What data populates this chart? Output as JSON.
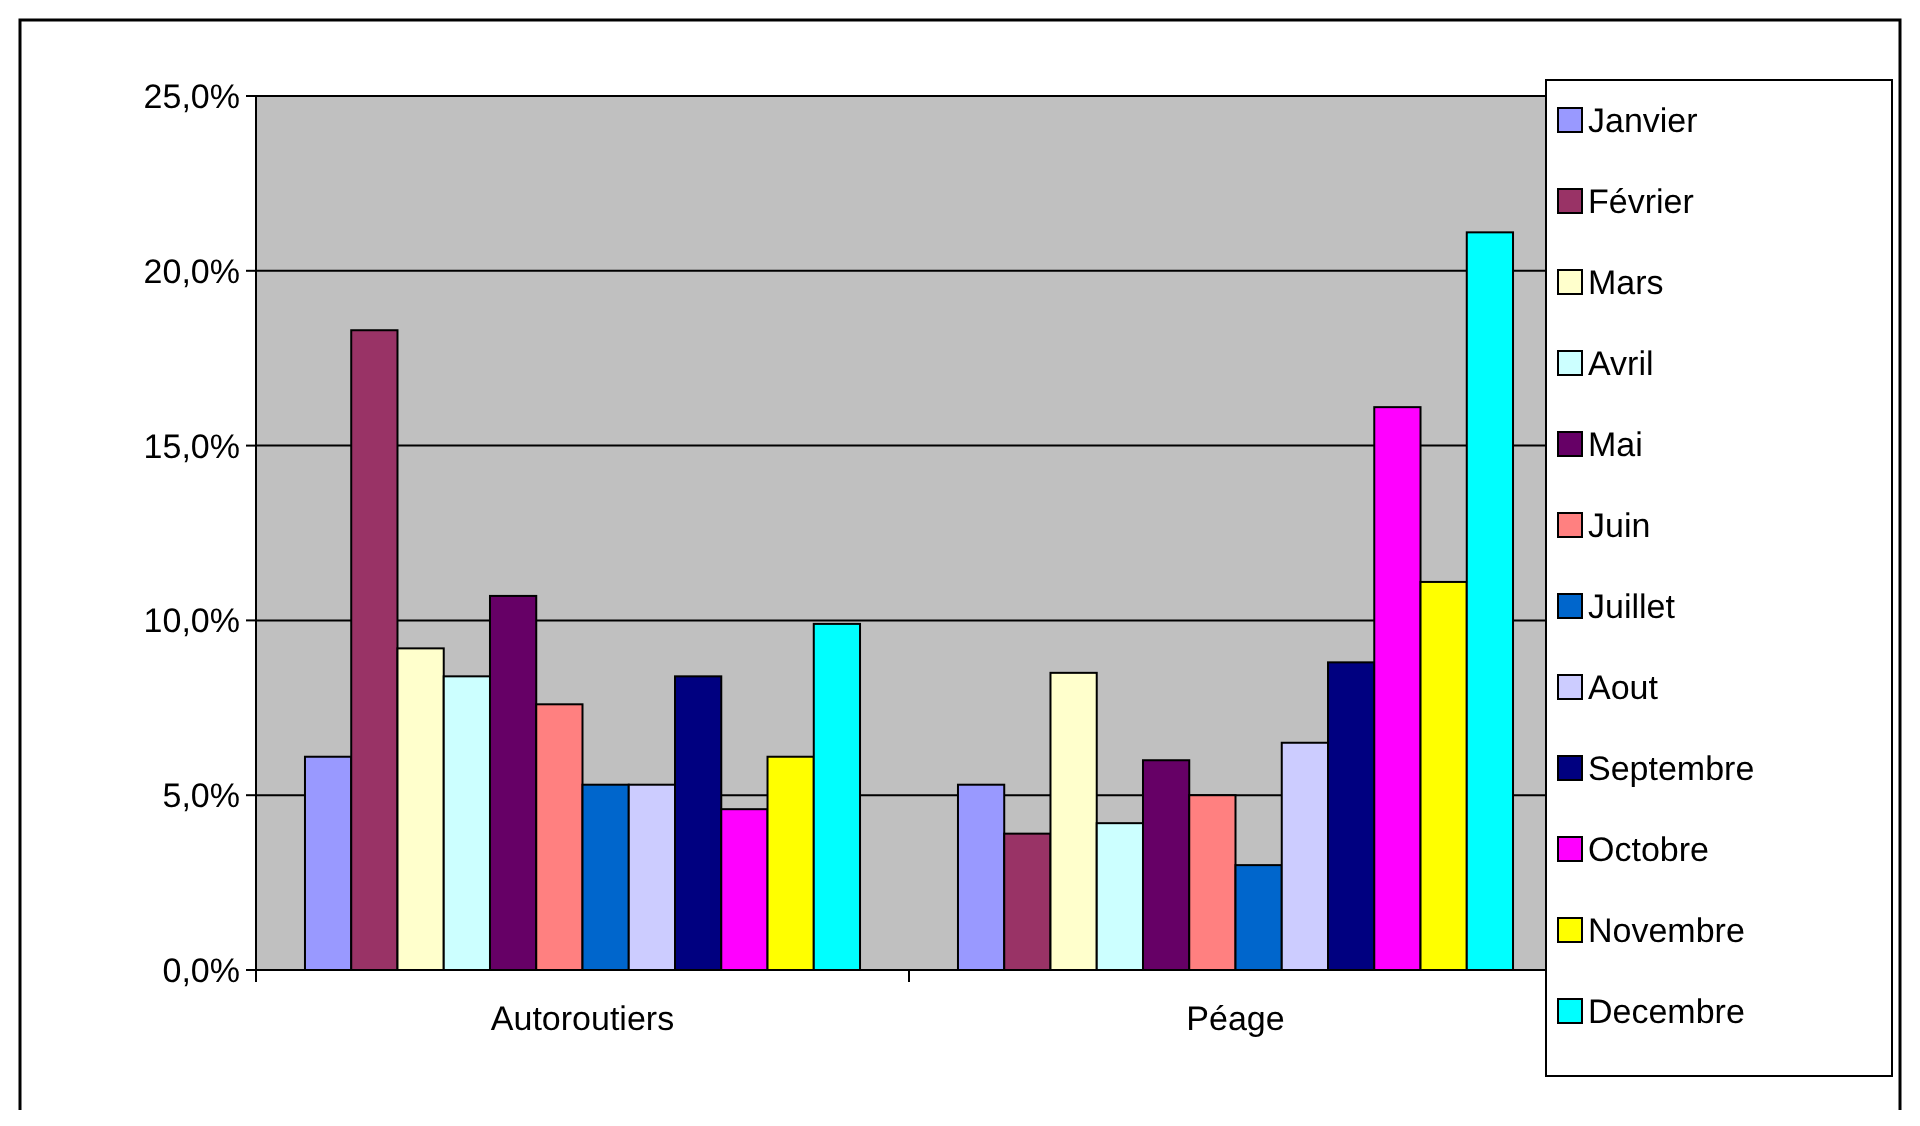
{
  "chart_data": {
    "type": "bar",
    "categories": [
      "Autoroutiers",
      "Péage"
    ],
    "series": [
      {
        "name": "Janvier",
        "color": "#9999ff",
        "values": [
          6.1,
          5.3
        ]
      },
      {
        "name": "Février",
        "color": "#993366",
        "values": [
          18.3,
          3.9
        ]
      },
      {
        "name": "Mars",
        "color": "#ffffcc",
        "values": [
          9.2,
          8.5
        ]
      },
      {
        "name": "Avril",
        "color": "#ccffff",
        "values": [
          8.4,
          4.2
        ]
      },
      {
        "name": "Mai",
        "color": "#660066",
        "values": [
          10.7,
          6.0
        ]
      },
      {
        "name": "Juin",
        "color": "#ff8080",
        "values": [
          7.6,
          5.0
        ]
      },
      {
        "name": "Juillet",
        "color": "#0066cc",
        "values": [
          5.3,
          3.0
        ]
      },
      {
        "name": "Aout",
        "color": "#ccccff",
        "values": [
          5.3,
          6.5
        ]
      },
      {
        "name": "Septembre",
        "color": "#000080",
        "values": [
          8.4,
          8.8
        ]
      },
      {
        "name": "Octobre",
        "color": "#ff00ff",
        "values": [
          4.6,
          16.1
        ]
      },
      {
        "name": "Novembre",
        "color": "#ffff00",
        "values": [
          6.1,
          11.1
        ]
      },
      {
        "name": "Decembre",
        "color": "#00ffff",
        "values": [
          9.9,
          21.1
        ]
      }
    ],
    "ylim": [
      0,
      25
    ],
    "yticks": [
      {
        "value": 0,
        "label": "0,0%"
      },
      {
        "value": 5,
        "label": "5,0%"
      },
      {
        "value": 10,
        "label": "10,0%"
      },
      {
        "value": 15,
        "label": "15,0%"
      },
      {
        "value": 20,
        "label": "20,0%"
      },
      {
        "value": 25,
        "label": "25,0%"
      }
    ],
    "grid": "y",
    "legend": "right"
  }
}
